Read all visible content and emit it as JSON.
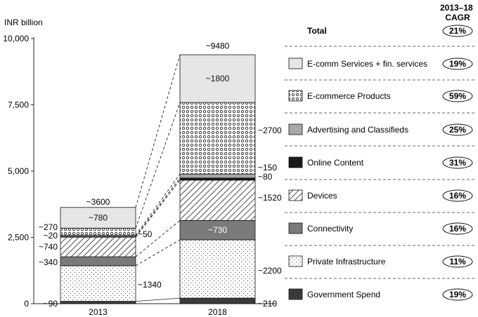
{
  "chart_data": {
    "type": "bar",
    "stacked": true,
    "ylabel": "INR billion",
    "ylim": [
      0,
      10000
    ],
    "yticks": [
      0,
      2500,
      5000,
      7500,
      10000
    ],
    "ytick_labels": [
      "0",
      "2,500",
      "5,000",
      "7,500",
      "10,000"
    ],
    "categories": [
      "2013",
      "2018"
    ],
    "totals": [
      3600,
      9480
    ],
    "total_labels": [
      "~3600",
      "~9480"
    ],
    "cagr_header": "2013–18\nCAGR",
    "total_row": {
      "label": "Total",
      "cagr": "21%"
    },
    "series": [
      {
        "name": "Government Spend",
        "cagr": "19%",
        "values": [
          90,
          210
        ],
        "labels": [
          "~90",
          "~210"
        ],
        "pattern": "solid-dark"
      },
      {
        "name": "Private Infrastructure",
        "cagr": "11%",
        "values": [
          1340,
          2200
        ],
        "labels": [
          "~1340",
          "~2200"
        ],
        "pattern": "sparse-dots"
      },
      {
        "name": "Connectivity",
        "cagr": "16%",
        "values": [
          340,
          730
        ],
        "labels": [
          "~340",
          "~730"
        ],
        "pattern": "solid-mid"
      },
      {
        "name": "Devices",
        "cagr": "16%",
        "values": [
          740,
          1520
        ],
        "labels": [
          "~740",
          "~1520"
        ],
        "pattern": "hatch"
      },
      {
        "name": "Online Content",
        "cagr": "31%",
        "values": [
          20,
          80
        ],
        "labels": [
          "~20",
          "~80"
        ],
        "pattern": "solid-black"
      },
      {
        "name": "Advertising and Classifieds",
        "cagr": "25%",
        "values": [
          50,
          150
        ],
        "labels": [
          "~50",
          "~150"
        ],
        "pattern": "solid-light"
      },
      {
        "name": "E-commerce Products",
        "cagr": "59%",
        "values": [
          270,
          2700
        ],
        "labels": [
          "~270",
          "~2700"
        ],
        "pattern": "circles"
      },
      {
        "name": "E-comm Services + fin. services",
        "cagr": "19%",
        "values": [
          780,
          1800
        ],
        "labels": [
          "~780",
          "~1800"
        ],
        "pattern": "solid-pale"
      }
    ],
    "colors": {
      "solid-dark": "#3a3a3a",
      "solid-mid": "#7a7a7a",
      "solid-black": "#1a1a1a",
      "solid-light": "#a8a8a8",
      "solid-pale": "#e6e6e6",
      "pattern-fg": "#333333",
      "pattern-bg": "#ffffff"
    }
  }
}
